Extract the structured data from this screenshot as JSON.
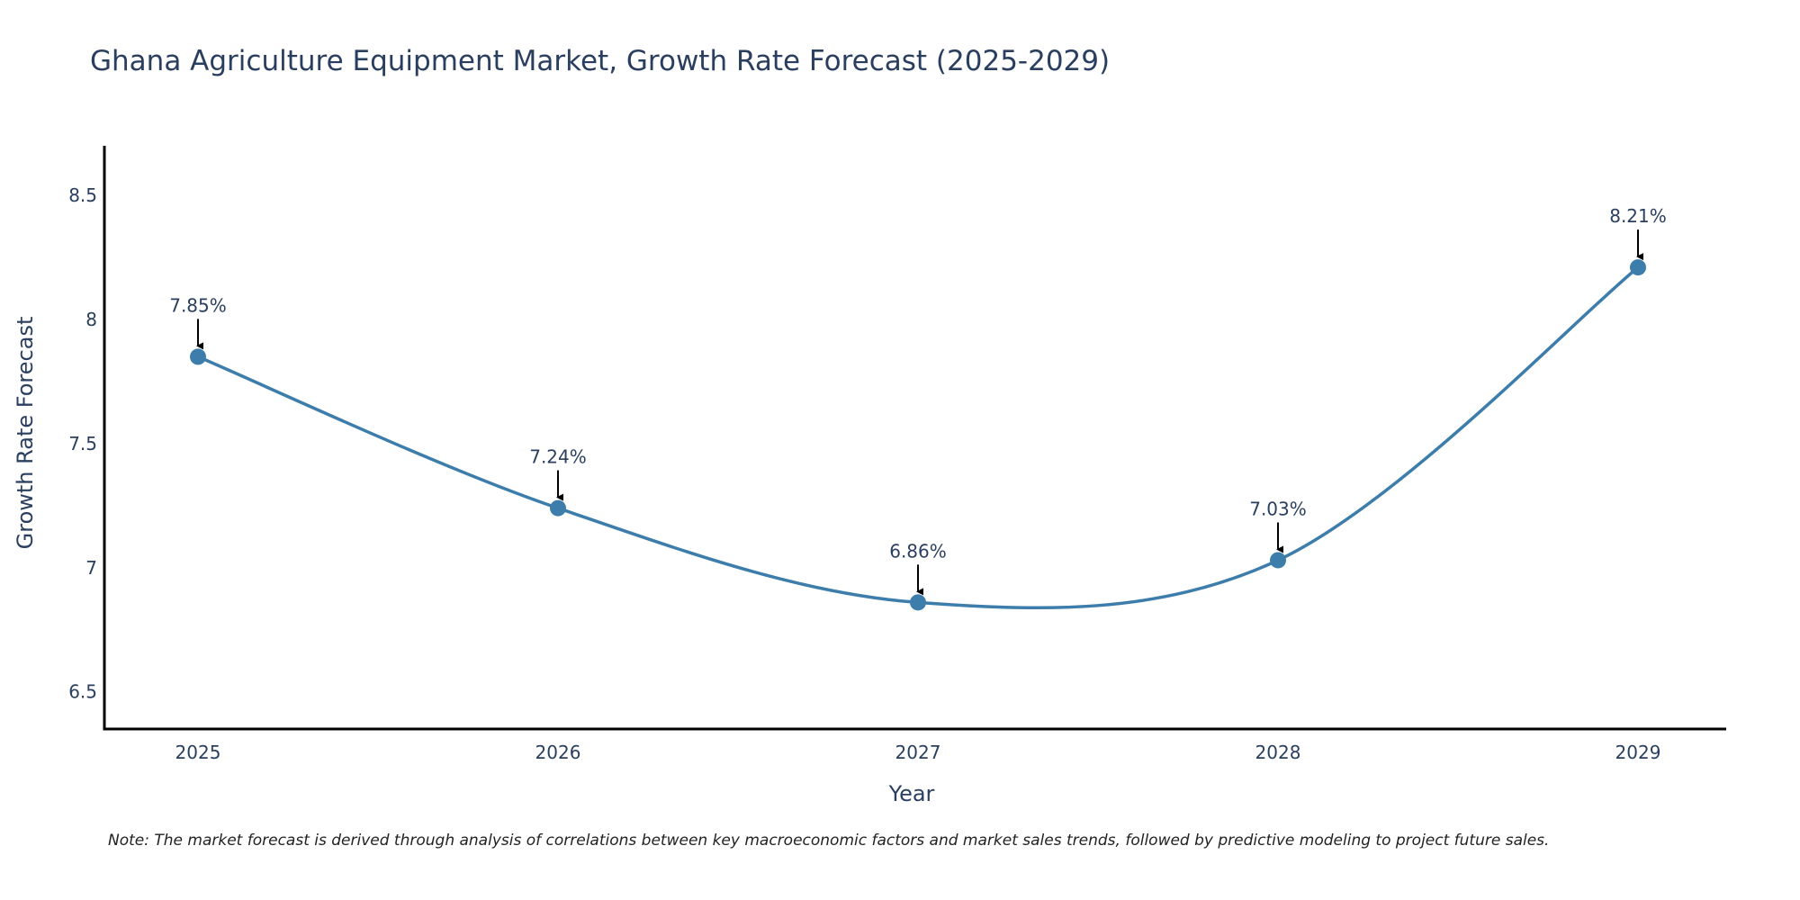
{
  "chart_data": {
    "type": "line",
    "title": "Ghana Agriculture Equipment Market, Growth Rate Forecast (2025-2029)",
    "xlabel": "Year",
    "ylabel": "Growth Rate Forecast",
    "categories": [
      "2025",
      "2026",
      "2027",
      "2028",
      "2029"
    ],
    "values": [
      7.85,
      7.24,
      6.86,
      7.03,
      8.21
    ],
    "data_labels": [
      "7.85%",
      "7.24%",
      "6.86%",
      "7.03%",
      "8.21%"
    ],
    "ylim": [
      6.35,
      8.7
    ],
    "yticks": [
      6.5,
      7,
      7.5,
      8,
      8.5
    ],
    "ytick_labels": [
      "6.5",
      "7",
      "7.5",
      "8",
      "8.5"
    ],
    "line_shape": "spline",
    "grid": false,
    "series_color": "#3d7dab",
    "marker_color": "#3d7dab",
    "arrow_color": "#000000",
    "note": "Note: The market forecast is derived through analysis of correlations between key macroeconomic factors and market sales trends, followed by predictive modeling to project future sales."
  }
}
